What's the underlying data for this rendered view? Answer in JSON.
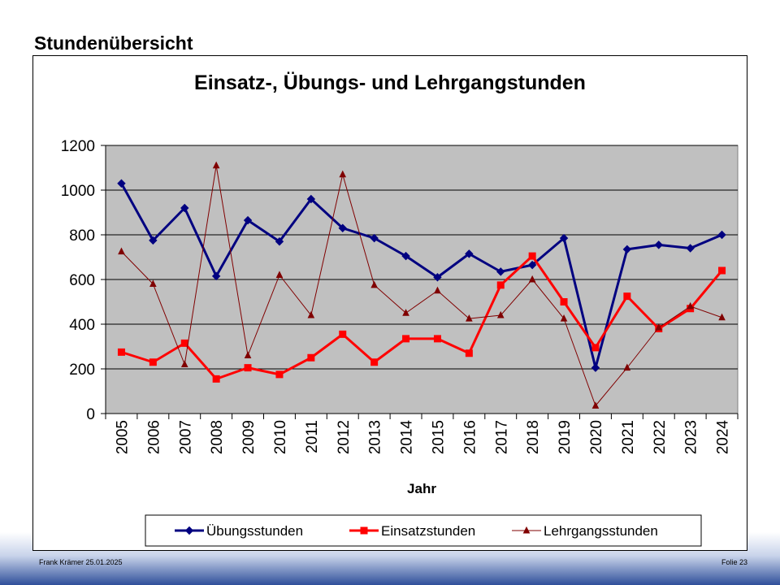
{
  "slide": {
    "title": "Stundenübersicht",
    "footer_left": "Frank Krämer 25.01.2025",
    "footer_right": "Folie 23"
  },
  "colors": {
    "plot_background": "#c0c0c0",
    "series": [
      "#000080",
      "#ff0000",
      "#800000"
    ]
  },
  "chart_data": {
    "type": "line",
    "title": "Einsatz-, Übungs- und Lehrgangstunden",
    "xlabel": "Jahr",
    "ylabel": "",
    "ylim": [
      0,
      1200
    ],
    "yticks": [
      0,
      200,
      400,
      600,
      800,
      1000,
      1200
    ],
    "grid": true,
    "legend_position": "bottom",
    "categories": [
      "2005",
      "2006",
      "2007",
      "2008",
      "2009",
      "2010",
      "2011",
      "2012",
      "2013",
      "2014",
      "2015",
      "2016",
      "2017",
      "2018",
      "2019",
      "2020",
      "2021",
      "2022",
      "2023",
      "2024"
    ],
    "series": [
      {
        "name": "Übungsstunden",
        "marker": "diamond",
        "values": [
          1030,
          775,
          920,
          615,
          865,
          770,
          960,
          830,
          785,
          705,
          610,
          715,
          635,
          665,
          785,
          205,
          735,
          755,
          740,
          800
        ]
      },
      {
        "name": "Einsatzstunden",
        "marker": "square",
        "values": [
          275,
          230,
          315,
          155,
          205,
          175,
          250,
          355,
          230,
          335,
          335,
          270,
          575,
          705,
          500,
          295,
          525,
          380,
          470,
          640
        ]
      },
      {
        "name": "Lehrgangsstunden",
        "marker": "triangle",
        "values": [
          725,
          580,
          220,
          1110,
          260,
          620,
          440,
          1070,
          575,
          450,
          550,
          425,
          440,
          600,
          425,
          35,
          205,
          385,
          480,
          430
        ]
      }
    ]
  }
}
